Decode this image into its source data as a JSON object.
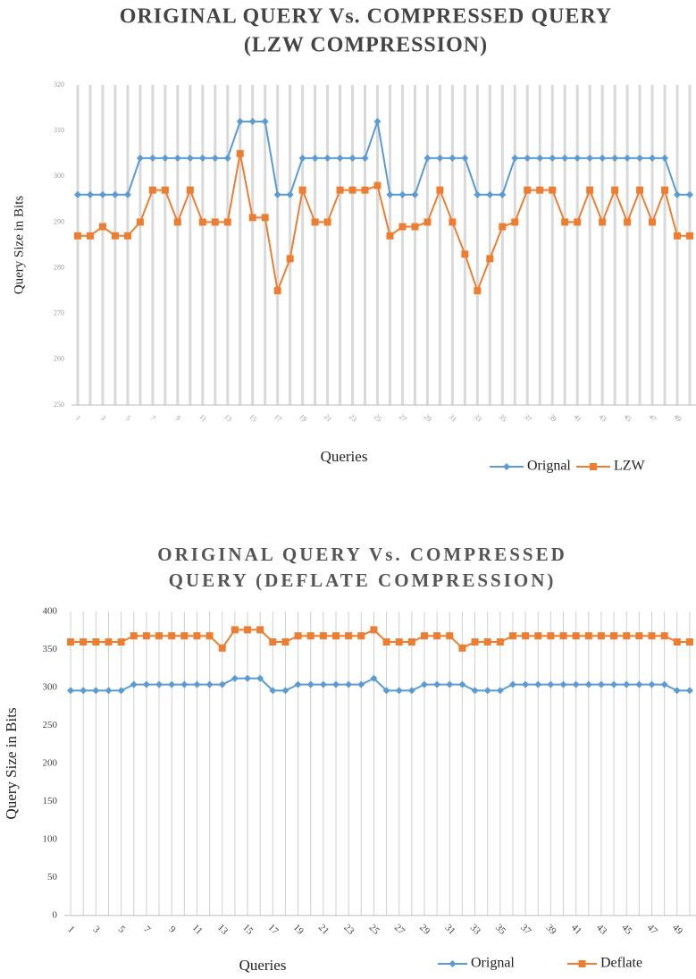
{
  "chart_data": [
    {
      "type": "line",
      "title": [
        "ORIGINAL QUERY Vs. COMPRESSED QUERY",
        "(LZW COMPRESSION)"
      ],
      "x_label": "Queries",
      "y_label": "Query Size in Bits",
      "categories": [
        1,
        null,
        3,
        null,
        5,
        null,
        7,
        null,
        9,
        null,
        11,
        null,
        13,
        null,
        15,
        null,
        17,
        null,
        19,
        null,
        21,
        null,
        23,
        null,
        25,
        null,
        27,
        null,
        29,
        null,
        31,
        null,
        33,
        null,
        35,
        null,
        37,
        null,
        39,
        null,
        41,
        null,
        43,
        null,
        45,
        null,
        47,
        null,
        49,
        null
      ],
      "series": [
        {
          "name": "Orignal",
          "color": "#5b9bd5",
          "marker": "diamond",
          "values": [
            296,
            296,
            296,
            296,
            296,
            304,
            304,
            304,
            304,
            304,
            304,
            304,
            304,
            312,
            312,
            312,
            296,
            296,
            304,
            304,
            304,
            304,
            304,
            304,
            312,
            296,
            296,
            296,
            304,
            304,
            304,
            304,
            296,
            296,
            296,
            304,
            304,
            304,
            304,
            304,
            304,
            304,
            304,
            304,
            304,
            304,
            304,
            304,
            296,
            296
          ]
        },
        {
          "name": "LZW",
          "color": "#ed7d31",
          "marker": "square",
          "values": [
            287,
            287,
            289,
            287,
            287,
            290,
            297,
            297,
            290,
            297,
            290,
            290,
            290,
            305,
            291,
            291,
            275,
            282,
            297,
            290,
            290,
            297,
            297,
            297,
            298,
            287,
            289,
            289,
            290,
            297,
            290,
            283,
            275,
            282,
            289,
            290,
            297,
            297,
            297,
            290,
            290,
            297,
            290,
            297,
            290,
            297,
            290,
            297,
            287,
            287
          ]
        }
      ],
      "ylim": [
        250,
        320
      ],
      "yticks": [
        250,
        260,
        270,
        280,
        290,
        300,
        310,
        320
      ],
      "grid": "x",
      "legend": "bottom-right"
    },
    {
      "type": "line",
      "title": [
        "ORIGINAL QUERY Vs. COMPRESSED",
        "QUERY (DEFLATE COMPRESSION)"
      ],
      "x_label": "Queries",
      "y_label": "Query Size in Bits",
      "categories": [
        1,
        null,
        3,
        null,
        5,
        null,
        7,
        null,
        9,
        null,
        11,
        null,
        13,
        null,
        15,
        null,
        17,
        null,
        19,
        null,
        21,
        null,
        23,
        null,
        25,
        null,
        27,
        null,
        29,
        null,
        31,
        null,
        33,
        null,
        35,
        null,
        37,
        null,
        39,
        null,
        41,
        null,
        43,
        null,
        45,
        null,
        47,
        null,
        49,
        null
      ],
      "series": [
        {
          "name": "Orignal",
          "color": "#5b9bd5",
          "marker": "diamond",
          "values": [
            296,
            296,
            296,
            296,
            296,
            304,
            304,
            304,
            304,
            304,
            304,
            304,
            304,
            312,
            312,
            312,
            296,
            296,
            304,
            304,
            304,
            304,
            304,
            304,
            312,
            296,
            296,
            296,
            304,
            304,
            304,
            304,
            296,
            296,
            296,
            304,
            304,
            304,
            304,
            304,
            304,
            304,
            304,
            304,
            304,
            304,
            304,
            304,
            296,
            296
          ]
        },
        {
          "name": "Deflate",
          "color": "#ed7d31",
          "marker": "square",
          "values": [
            360,
            360,
            360,
            360,
            360,
            368,
            368,
            368,
            368,
            368,
            368,
            368,
            352,
            376,
            376,
            376,
            360,
            360,
            368,
            368,
            368,
            368,
            368,
            368,
            376,
            360,
            360,
            360,
            368,
            368,
            368,
            352,
            360,
            360,
            360,
            368,
            368,
            368,
            368,
            368,
            368,
            368,
            368,
            368,
            368,
            368,
            368,
            368,
            360,
            360
          ]
        }
      ],
      "ylim": [
        0,
        400
      ],
      "yticks": [
        0,
        50,
        100,
        150,
        200,
        250,
        300,
        350,
        400
      ],
      "grid": "x",
      "legend": "bottom-right"
    }
  ]
}
